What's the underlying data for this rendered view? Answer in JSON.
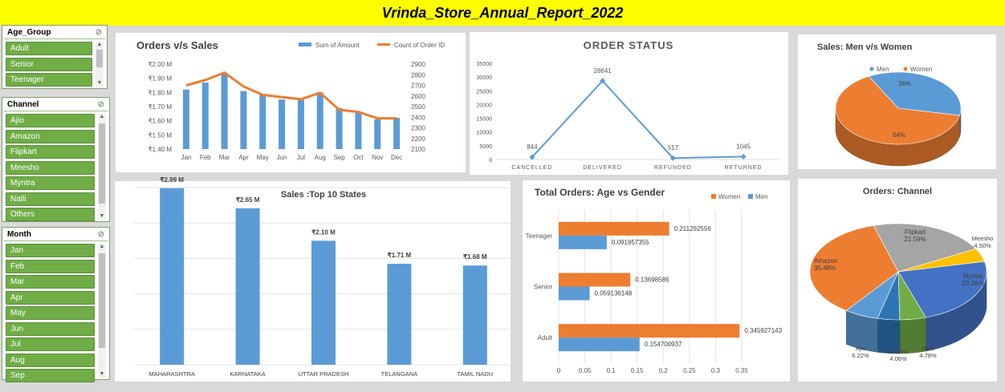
{
  "title": "Vrinda_Store_Annual_Report_2022",
  "slicers": {
    "age": {
      "header": "Age_Group",
      "items": [
        "Adult",
        "Senior",
        "Teenager"
      ]
    },
    "channel": {
      "header": "Channel",
      "items": [
        "Ajio",
        "Amazon",
        "Flipkart",
        "Meesho",
        "Myntra",
        "Nalli",
        "Others"
      ]
    },
    "month": {
      "header": "Month",
      "items": [
        "Jan",
        "Feb",
        "Mar",
        "Apr",
        "May",
        "Jun",
        "Jul",
        "Aug",
        "Sep"
      ]
    }
  },
  "colors": {
    "blue": "#5b9bd5",
    "orange": "#ed7d31",
    "gray": "#a5a5a5",
    "yellow": "#ffc000",
    "darkblue": "#4472c4",
    "green": "#70ad47",
    "slicer_green": "#70ad47",
    "title_bg": "#ffff00"
  },
  "chart_data": [
    {
      "id": "orders_vs_sales",
      "type": "bar",
      "title": "Orders v/s Sales",
      "categories": [
        "Jan",
        "Feb",
        "Mar",
        "Apr",
        "May",
        "Jun",
        "Jul",
        "Aug",
        "Sep",
        "Oct",
        "Nov",
        "Dec"
      ],
      "series": [
        {
          "name": "Sum of Amount",
          "type": "bar",
          "axis": "left",
          "values": [
            1.82,
            1.87,
            1.93,
            1.81,
            1.79,
            1.75,
            1.75,
            1.8,
            1.69,
            1.66,
            1.61,
            1.62
          ]
        },
        {
          "name": "Count of Order ID",
          "type": "line",
          "axis": "right",
          "values": [
            2700,
            2750,
            2820,
            2690,
            2610,
            2590,
            2570,
            2630,
            2470,
            2450,
            2390,
            2390
          ]
        }
      ],
      "yleft_ticks": [
        "₹2.00 M",
        "₹1.90 M",
        "₹1.80 M",
        "₹1.70 M",
        "₹1.60 M",
        "₹1.50 M",
        "₹1.40 M"
      ],
      "yleft_lim": [
        1.4,
        2.0
      ],
      "yright_ticks": [
        "2900",
        "2800",
        "2700",
        "2600",
        "2500",
        "2400",
        "2300",
        "2200",
        "2100"
      ],
      "yright_lim": [
        2100,
        2900
      ],
      "legend": "top-right"
    },
    {
      "id": "order_status",
      "type": "line",
      "title": "ORDER STATUS",
      "categories": [
        "CANCELLED",
        "DELIVERED",
        "REFUNDED",
        "RETURNED"
      ],
      "values": [
        844,
        28641,
        517,
        1045
      ],
      "data_labels": [
        "844",
        "28641",
        "517",
        "1045"
      ],
      "y_ticks": [
        "35000",
        "30000",
        "25000",
        "20000",
        "15000",
        "10000",
        "5000",
        "0"
      ],
      "ylim": [
        0,
        35000
      ]
    },
    {
      "id": "sales_men_women",
      "type": "pie",
      "title": "Sales: Men v/s Women",
      "labels": [
        "Men",
        "Women"
      ],
      "values": [
        36,
        64
      ],
      "data_labels": [
        "36%",
        "64%"
      ],
      "legend": "top"
    },
    {
      "id": "top10_states",
      "type": "bar",
      "title": "Sales :Top 10 States",
      "categories": [
        "MAHARASHTRA",
        "KARNATAKA",
        "UTTAR PRADESH",
        "TELANGANA",
        "TAMIL NADU"
      ],
      "values": [
        2.99,
        2.65,
        2.1,
        1.71,
        1.68
      ],
      "data_labels": [
        "₹2.99 M",
        "₹2.65 M",
        "₹2.10 M",
        "₹1.71 M",
        "₹1.68 M"
      ],
      "ylim": [
        0,
        3.0
      ]
    },
    {
      "id": "age_vs_gender",
      "type": "bar",
      "orientation": "horizontal",
      "title": "Total Orders: Age vs Gender",
      "categories": [
        "Adult",
        "Senior",
        "Teenager"
      ],
      "series": [
        {
          "name": "Women",
          "values": [
            0.345927143,
            0.13698586,
            0.211292556
          ],
          "labels": [
            "0.345927143",
            "0.13698586",
            "0.211292556"
          ]
        },
        {
          "name": "Men",
          "values": [
            0.154700937,
            0.059136148,
            0.091957355
          ],
          "labels": [
            "0.154700937",
            "0.059136148",
            "0.091957355"
          ]
        }
      ],
      "x_ticks": [
        "0",
        "0.05",
        "0.1",
        "0.15",
        "0.2",
        "0.25",
        "0.3",
        "0.35"
      ],
      "xlim": [
        0,
        0.35
      ],
      "legend": "top-right"
    },
    {
      "id": "orders_channel",
      "type": "pie",
      "title": "Orders: Channel",
      "labels": [
        "Amazon",
        "Flipkart",
        "Meesho",
        "Myntra",
        "Nalli",
        "Others",
        "Ajio"
      ],
      "values": [
        35.48,
        21.59,
        4.5,
        23.36,
        4.78,
        4.06,
        6.22
      ],
      "data_labels": [
        "35.48%",
        "21.59%",
        "4.50%",
        "23.36%",
        "4.78%",
        "4.06%",
        "6.22%"
      ]
    }
  ]
}
